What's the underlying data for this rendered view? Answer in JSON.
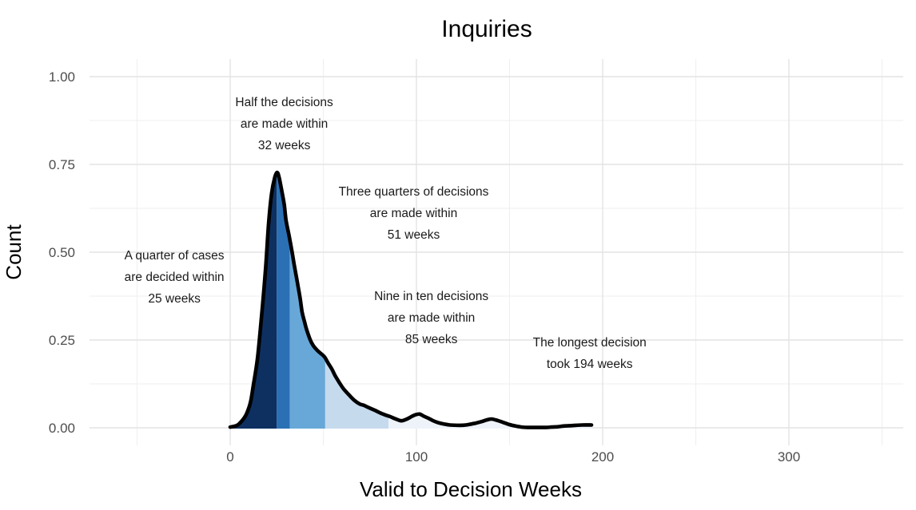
{
  "title": "Inquiries",
  "chart_data": {
    "type": "area",
    "subtype": "density-curve-with-quantile-shading",
    "title": "Inquiries",
    "xlabel": "Valid to Decision Weeks",
    "ylabel": "Count",
    "xlim_weeks": [
      -75,
      362
    ],
    "ylim": [
      0,
      1.05
    ],
    "grid": "major and minor gridlines, no axis lines, no tick marks",
    "legend": "none",
    "x_ticks": {
      "values": [
        0,
        100,
        200,
        300
      ],
      "labels": [
        "0",
        "100",
        "200",
        "300"
      ],
      "minor": [
        -50,
        50,
        150,
        250,
        350
      ]
    },
    "y_ticks": {
      "values": [
        0,
        0.25,
        0.5,
        0.75,
        1.0
      ],
      "labels": [
        "0.00",
        "0.25",
        "0.50",
        "0.75",
        "1.00"
      ],
      "minor": [
        0.125,
        0.375,
        0.625,
        0.875
      ]
    },
    "quantiles_weeks": {
      "q25": 25,
      "median": 32,
      "q75": 51,
      "q90": 85,
      "max": 194
    },
    "bands": [
      {
        "name": "quarter-of-cases-band",
        "from_weeks": 0,
        "to_weeks": 25,
        "color": "#0d3061"
      },
      {
        "name": "half-of-cases-band",
        "from_weeks": 25,
        "to_weeks": 32,
        "color": "#2b70b5"
      },
      {
        "name": "three-quarters-band",
        "from_weeks": 32,
        "to_weeks": 51,
        "color": "#68a8d8"
      },
      {
        "name": "nine-in-ten-band",
        "from_weeks": 51,
        "to_weeks": 85,
        "color": "#c6daee"
      },
      {
        "name": "tail-band",
        "from_weeks": 85,
        "to_weeks": 194,
        "color": "#eef3fa"
      }
    ],
    "curve": {
      "color": "#000000",
      "stroke_width": 4.6,
      "points_weeks_density": [
        [
          0,
          0.002
        ],
        [
          2,
          0.004
        ],
        [
          4,
          0.008
        ],
        [
          6,
          0.018
        ],
        [
          8,
          0.032
        ],
        [
          9.4,
          0.048
        ],
        [
          11,
          0.075
        ],
        [
          12.4,
          0.12
        ],
        [
          14.6,
          0.195
        ],
        [
          16.7,
          0.309
        ],
        [
          18.9,
          0.445
        ],
        [
          20.6,
          0.58
        ],
        [
          22.3,
          0.67
        ],
        [
          24,
          0.714
        ],
        [
          25.3,
          0.727
        ],
        [
          26.3,
          0.712
        ],
        [
          27.5,
          0.68
        ],
        [
          29,
          0.636
        ],
        [
          30,
          0.59
        ],
        [
          31.5,
          0.55
        ],
        [
          33,
          0.507
        ],
        [
          34.5,
          0.46
        ],
        [
          36,
          0.416
        ],
        [
          37.5,
          0.37
        ],
        [
          38.6,
          0.33
        ],
        [
          40,
          0.3
        ],
        [
          41.2,
          0.277
        ],
        [
          43,
          0.25
        ],
        [
          44.6,
          0.234
        ],
        [
          46.5,
          0.222
        ],
        [
          48.1,
          0.214
        ],
        [
          50.6,
          0.202
        ],
        [
          52.5,
          0.185
        ],
        [
          54.5,
          0.168
        ],
        [
          56.5,
          0.147
        ],
        [
          58.8,
          0.127
        ],
        [
          61,
          0.11
        ],
        [
          63.9,
          0.093
        ],
        [
          66.5,
          0.079
        ],
        [
          69.5,
          0.068
        ],
        [
          71.7,
          0.064
        ],
        [
          75,
          0.056
        ],
        [
          78,
          0.049
        ],
        [
          80.3,
          0.043
        ],
        [
          83,
          0.037
        ],
        [
          85.8,
          0.032
        ],
        [
          88.5,
          0.026
        ],
        [
          91.8,
          0.02
        ],
        [
          94.5,
          0.024
        ],
        [
          97.4,
          0.032
        ],
        [
          99.5,
          0.037
        ],
        [
          101.7,
          0.039
        ],
        [
          104,
          0.033
        ],
        [
          106.5,
          0.027
        ],
        [
          109,
          0.02
        ],
        [
          111.5,
          0.015
        ],
        [
          114.6,
          0.011
        ],
        [
          118,
          0.008
        ],
        [
          123.2,
          0.007
        ],
        [
          126.5,
          0.008
        ],
        [
          129.6,
          0.011
        ],
        [
          132.5,
          0.014
        ],
        [
          135.2,
          0.018
        ],
        [
          137.5,
          0.022
        ],
        [
          140.3,
          0.025
        ],
        [
          143.5,
          0.021
        ],
        [
          146.8,
          0.015
        ],
        [
          150,
          0.009
        ],
        [
          153.2,
          0.005
        ],
        [
          156.5,
          0.002
        ],
        [
          159.7,
          0.001
        ],
        [
          163,
          0.001
        ],
        [
          166.1,
          0.001
        ],
        [
          169.5,
          0.001
        ],
        [
          172.5,
          0.002
        ],
        [
          176,
          0.003
        ],
        [
          179,
          0.005
        ],
        [
          182.5,
          0.006
        ],
        [
          185.4,
          0.007
        ],
        [
          189,
          0.008
        ],
        [
          194,
          0.008
        ]
      ]
    },
    "annotations": [
      {
        "x_weeks": -30,
        "y_density": 0.48,
        "lines": [
          "A quarter of cases",
          "are decided within",
          "25 weeks"
        ]
      },
      {
        "x_weeks": 29,
        "y_density": 0.916,
        "lines": [
          "Half the decisions",
          "are made within",
          "32 weeks"
        ]
      },
      {
        "x_weeks": 98.5,
        "y_density": 0.661,
        "lines": [
          "Three quarters of decisions",
          "are made within",
          "51 weeks"
        ]
      },
      {
        "x_weeks": 108,
        "y_density": 0.364,
        "lines": [
          "Nine in ten decisions",
          "are made within",
          "85 weeks"
        ]
      },
      {
        "x_weeks": 193,
        "y_density": 0.232,
        "lines": [
          "The longest decision",
          "took 194 weeks"
        ]
      }
    ],
    "colors": {
      "background": "#ffffff",
      "grid_major": "#e3e3e3",
      "grid_minor": "#efefef",
      "tick_text": "#4d4d4d",
      "text": "#000000"
    }
  }
}
